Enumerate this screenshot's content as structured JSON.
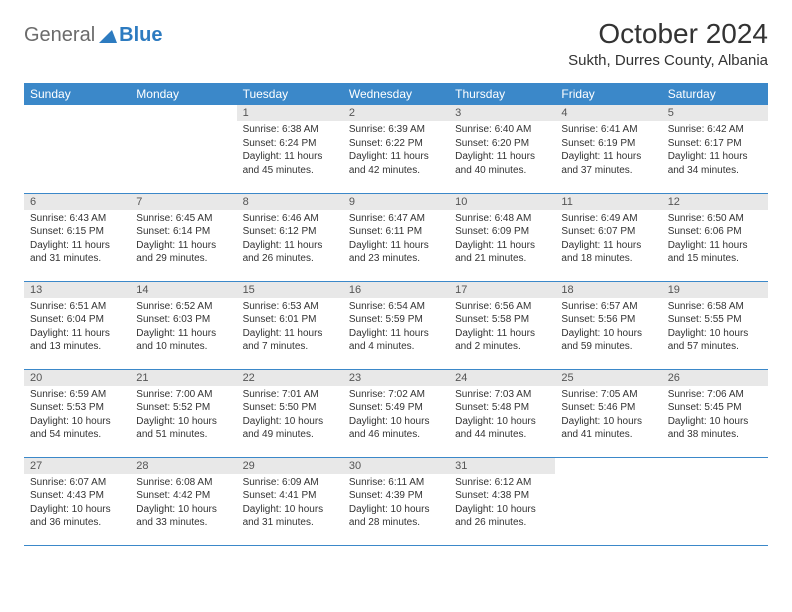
{
  "logo": {
    "general": "General",
    "blue": "Blue"
  },
  "header": {
    "title": "October 2024",
    "location": "Sukth, Durres County, Albania"
  },
  "colors": {
    "header_bg": "#3b88c9",
    "header_fg": "#ffffff",
    "daynum_bg": "#e8e8e8",
    "row_border": "#3b88c9",
    "logo_blue": "#2d7bc0",
    "logo_grey": "#6b6b6b"
  },
  "daysOfWeek": [
    "Sunday",
    "Monday",
    "Tuesday",
    "Wednesday",
    "Thursday",
    "Friday",
    "Saturday"
  ],
  "grid": [
    [
      null,
      null,
      {
        "n": "1",
        "sr": "6:38 AM",
        "ss": "6:24 PM",
        "dl": "11 hours and 45 minutes."
      },
      {
        "n": "2",
        "sr": "6:39 AM",
        "ss": "6:22 PM",
        "dl": "11 hours and 42 minutes."
      },
      {
        "n": "3",
        "sr": "6:40 AM",
        "ss": "6:20 PM",
        "dl": "11 hours and 40 minutes."
      },
      {
        "n": "4",
        "sr": "6:41 AM",
        "ss": "6:19 PM",
        "dl": "11 hours and 37 minutes."
      },
      {
        "n": "5",
        "sr": "6:42 AM",
        "ss": "6:17 PM",
        "dl": "11 hours and 34 minutes."
      }
    ],
    [
      {
        "n": "6",
        "sr": "6:43 AM",
        "ss": "6:15 PM",
        "dl": "11 hours and 31 minutes."
      },
      {
        "n": "7",
        "sr": "6:45 AM",
        "ss": "6:14 PM",
        "dl": "11 hours and 29 minutes."
      },
      {
        "n": "8",
        "sr": "6:46 AM",
        "ss": "6:12 PM",
        "dl": "11 hours and 26 minutes."
      },
      {
        "n": "9",
        "sr": "6:47 AM",
        "ss": "6:11 PM",
        "dl": "11 hours and 23 minutes."
      },
      {
        "n": "10",
        "sr": "6:48 AM",
        "ss": "6:09 PM",
        "dl": "11 hours and 21 minutes."
      },
      {
        "n": "11",
        "sr": "6:49 AM",
        "ss": "6:07 PM",
        "dl": "11 hours and 18 minutes."
      },
      {
        "n": "12",
        "sr": "6:50 AM",
        "ss": "6:06 PM",
        "dl": "11 hours and 15 minutes."
      }
    ],
    [
      {
        "n": "13",
        "sr": "6:51 AM",
        "ss": "6:04 PM",
        "dl": "11 hours and 13 minutes."
      },
      {
        "n": "14",
        "sr": "6:52 AM",
        "ss": "6:03 PM",
        "dl": "11 hours and 10 minutes."
      },
      {
        "n": "15",
        "sr": "6:53 AM",
        "ss": "6:01 PM",
        "dl": "11 hours and 7 minutes."
      },
      {
        "n": "16",
        "sr": "6:54 AM",
        "ss": "5:59 PM",
        "dl": "11 hours and 4 minutes."
      },
      {
        "n": "17",
        "sr": "6:56 AM",
        "ss": "5:58 PM",
        "dl": "11 hours and 2 minutes."
      },
      {
        "n": "18",
        "sr": "6:57 AM",
        "ss": "5:56 PM",
        "dl": "10 hours and 59 minutes."
      },
      {
        "n": "19",
        "sr": "6:58 AM",
        "ss": "5:55 PM",
        "dl": "10 hours and 57 minutes."
      }
    ],
    [
      {
        "n": "20",
        "sr": "6:59 AM",
        "ss": "5:53 PM",
        "dl": "10 hours and 54 minutes."
      },
      {
        "n": "21",
        "sr": "7:00 AM",
        "ss": "5:52 PM",
        "dl": "10 hours and 51 minutes."
      },
      {
        "n": "22",
        "sr": "7:01 AM",
        "ss": "5:50 PM",
        "dl": "10 hours and 49 minutes."
      },
      {
        "n": "23",
        "sr": "7:02 AM",
        "ss": "5:49 PM",
        "dl": "10 hours and 46 minutes."
      },
      {
        "n": "24",
        "sr": "7:03 AM",
        "ss": "5:48 PM",
        "dl": "10 hours and 44 minutes."
      },
      {
        "n": "25",
        "sr": "7:05 AM",
        "ss": "5:46 PM",
        "dl": "10 hours and 41 minutes."
      },
      {
        "n": "26",
        "sr": "7:06 AM",
        "ss": "5:45 PM",
        "dl": "10 hours and 38 minutes."
      }
    ],
    [
      {
        "n": "27",
        "sr": "6:07 AM",
        "ss": "4:43 PM",
        "dl": "10 hours and 36 minutes."
      },
      {
        "n": "28",
        "sr": "6:08 AM",
        "ss": "4:42 PM",
        "dl": "10 hours and 33 minutes."
      },
      {
        "n": "29",
        "sr": "6:09 AM",
        "ss": "4:41 PM",
        "dl": "10 hours and 31 minutes."
      },
      {
        "n": "30",
        "sr": "6:11 AM",
        "ss": "4:39 PM",
        "dl": "10 hours and 28 minutes."
      },
      {
        "n": "31",
        "sr": "6:12 AM",
        "ss": "4:38 PM",
        "dl": "10 hours and 26 minutes."
      },
      null,
      null
    ]
  ],
  "labels": {
    "sunrise": "Sunrise:",
    "sunset": "Sunset:",
    "daylight": "Daylight:"
  }
}
